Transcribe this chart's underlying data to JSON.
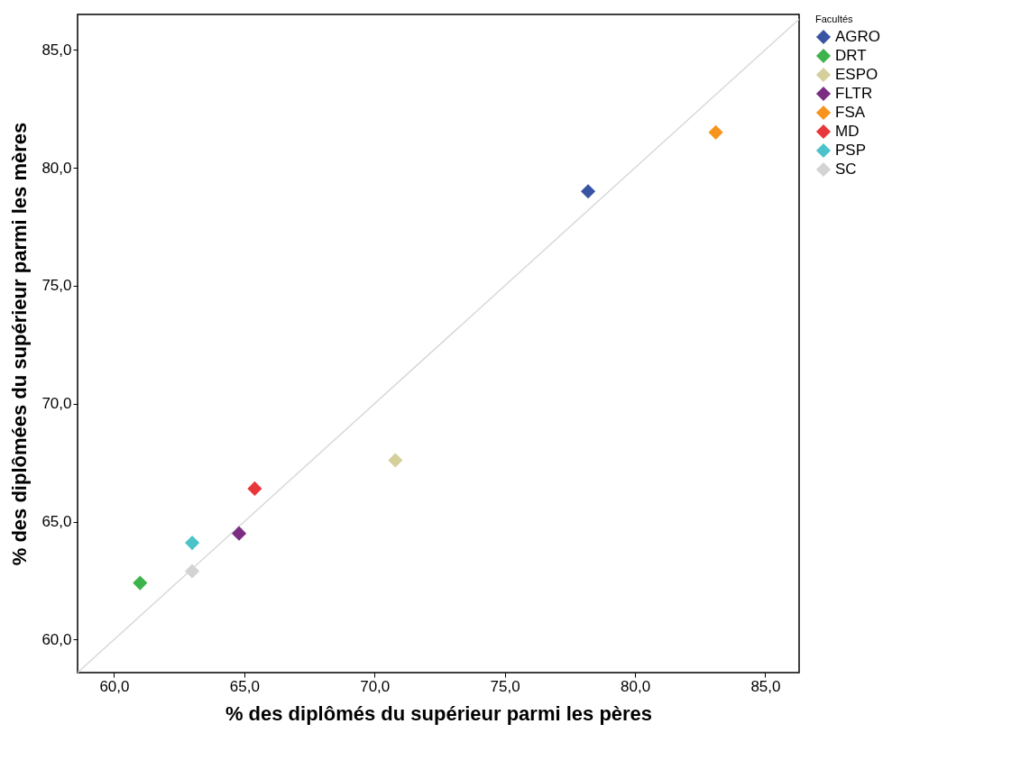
{
  "chart_data": {
    "type": "scatter",
    "xlabel": "% des diplômés du supérieur parmi les pères",
    "ylabel": "% des diplômées du supérieur parmi les mères",
    "legend_title": "Facultés",
    "legend": "top right",
    "marker": "diamond",
    "grid": false,
    "xlim": [
      58.6,
      86.3
    ],
    "ylim": [
      58.6,
      86.5
    ],
    "xticks": [
      {
        "value": 60,
        "label": "60,0"
      },
      {
        "value": 65,
        "label": "65,0"
      },
      {
        "value": 70,
        "label": "70,0"
      },
      {
        "value": 75,
        "label": "75,0"
      },
      {
        "value": 80,
        "label": "80,0"
      },
      {
        "value": 85,
        "label": "85,0"
      }
    ],
    "yticks": [
      {
        "value": 60,
        "label": "60,0"
      },
      {
        "value": 65,
        "label": "65,0"
      },
      {
        "value": 70,
        "label": "70,0"
      },
      {
        "value": 75,
        "label": "75,0"
      },
      {
        "value": 80,
        "label": "80,0"
      },
      {
        "value": 85,
        "label": "85,0"
      }
    ],
    "series": [
      {
        "type": "line",
        "marker": "none",
        "color": "#d9d9d9",
        "x": [
          58.6,
          86.3
        ],
        "values": [
          58.6,
          86.3
        ]
      },
      {
        "name": "AGRO",
        "color": "#3a54a4",
        "x": [
          78.2
        ],
        "values": [
          79.0
        ]
      },
      {
        "name": "DRT",
        "color": "#3cb44b",
        "x": [
          61.0
        ],
        "values": [
          62.4
        ]
      },
      {
        "name": "ESPO",
        "color": "#d4cf9b",
        "x": [
          70.8
        ],
        "values": [
          67.6
        ]
      },
      {
        "name": "FLTR",
        "color": "#7b2d82",
        "x": [
          64.8
        ],
        "values": [
          64.5
        ]
      },
      {
        "name": "FSA",
        "color": "#f7941d",
        "x": [
          83.1
        ],
        "values": [
          81.5
        ]
      },
      {
        "name": "MD",
        "color": "#e8373a",
        "x": [
          65.4
        ],
        "values": [
          66.4
        ]
      },
      {
        "name": "PSP",
        "color": "#4cc3c9",
        "x": [
          63.0
        ],
        "values": [
          64.1
        ]
      },
      {
        "name": "SC",
        "color": "#d3d3d3",
        "x": [
          63.0
        ],
        "values": [
          62.9
        ]
      }
    ]
  }
}
